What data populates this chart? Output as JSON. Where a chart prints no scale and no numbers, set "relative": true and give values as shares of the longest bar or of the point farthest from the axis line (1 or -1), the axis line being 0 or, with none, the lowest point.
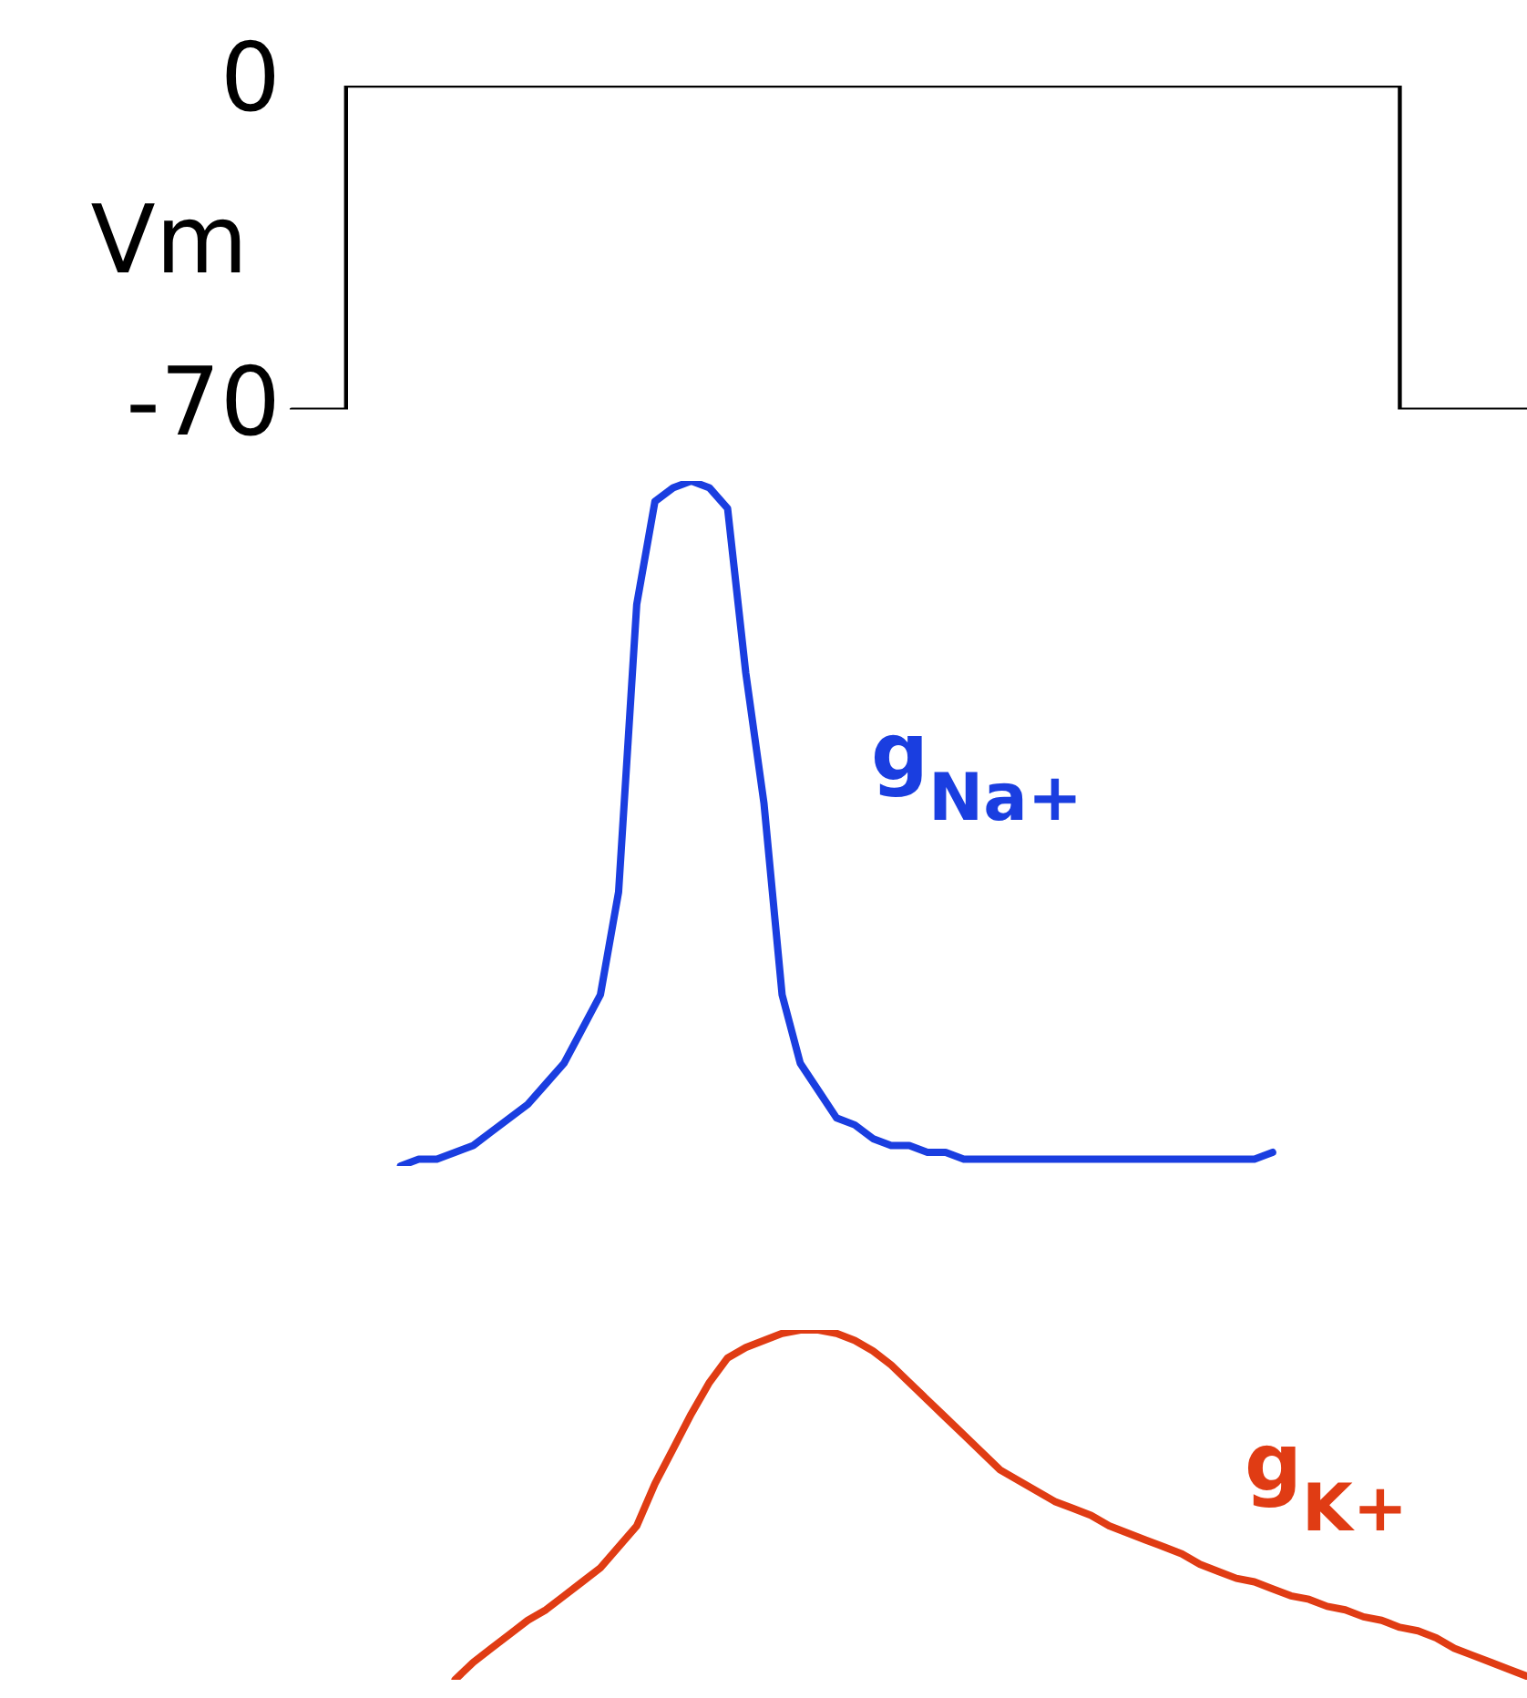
{
  "chart_data": [
    {
      "type": "step",
      "ylabel": "Vm",
      "categories": [
        null,
        null,
        null,
        null,
        null,
        null,
        null,
        null,
        null,
        null,
        null,
        null,
        null,
        null,
        null,
        null,
        null,
        null,
        null,
        null,
        null,
        null,
        null,
        null,
        null,
        null,
        null,
        null,
        null,
        null,
        null,
        null,
        null,
        null,
        null,
        null,
        null,
        null,
        null,
        null,
        null,
        null,
        null,
        null,
        null,
        null,
        null,
        null,
        null,
        null,
        null,
        null,
        null,
        null,
        null,
        null,
        null,
        null,
        null,
        null,
        null,
        null,
        null,
        null,
        null,
        null,
        null,
        null,
        null
      ],
      "values": [
        -70,
        -70,
        -70,
        -70,
        0,
        0,
        0,
        0,
        0,
        0,
        0,
        0,
        0,
        0,
        0,
        0,
        0,
        0,
        0,
        0,
        0,
        0,
        0,
        0,
        0,
        0,
        0,
        0,
        0,
        0,
        0,
        0,
        0,
        0,
        0,
        0,
        0,
        0,
        0,
        0,
        0,
        0,
        0,
        0,
        0,
        0,
        0,
        0,
        0,
        0,
        0,
        0,
        0,
        0,
        0,
        0,
        0,
        0,
        0,
        0,
        0,
        0,
        -70,
        -70,
        -70,
        -70,
        -70,
        -70,
        -70
      ],
      "color": "#000000",
      "ylim": [
        -70,
        0
      ],
      "yticks": [
        -70,
        0
      ],
      "tick_labels": "y"
    },
    {
      "type": "line",
      "relative": true,
      "tick_labels": false,
      "categories": [
        null,
        null,
        null,
        null,
        null,
        null,
        null,
        null,
        null,
        null,
        null,
        null,
        null,
        null,
        null,
        null,
        null,
        null,
        null,
        null,
        null,
        null,
        null,
        null,
        null,
        null,
        null,
        null,
        null,
        null,
        null,
        null,
        null,
        null,
        null,
        null,
        null,
        null,
        null,
        null,
        null,
        null,
        null,
        null,
        null,
        null,
        null,
        null,
        null,
        null,
        null,
        null,
        null,
        null,
        null,
        null,
        null,
        null,
        null,
        null,
        null,
        null,
        null,
        null,
        null,
        null,
        null,
        null,
        null
      ],
      "series": [
        {
          "name": "g$_{Na+}$",
          "color": "#1a3ee0",
          "values": [
            null,
            null,
            null,
            null,
            null,
            null,
            0,
            0.01,
            0.01,
            0.02,
            0.03,
            0.05,
            0.07,
            0.09,
            0.12,
            0.15,
            0.2,
            0.25,
            0.4,
            0.82,
            0.97,
            0.99,
            1,
            0.99,
            0.96,
            0.72,
            0.53,
            0.25,
            0.15,
            0.11,
            0.07,
            0.06,
            0.04,
            0.03,
            0.03,
            0.02,
            0.02,
            0.01,
            0.01,
            0.01,
            0.01,
            0.01,
            0.01,
            0.01,
            0.01,
            0.01,
            0.01,
            0.01,
            0.01,
            0.01,
            0.01,
            0.01,
            0.01,
            0.01,
            0.02,
            null,
            null,
            null,
            null,
            null,
            null,
            null,
            null,
            null,
            null,
            null,
            null,
            null,
            null
          ]
        }
      ]
    },
    {
      "type": "line",
      "relative": true,
      "tick_labels": false,
      "categories": [
        null,
        null,
        null,
        null,
        null,
        null,
        null,
        null,
        null,
        null,
        null,
        null,
        null,
        null,
        null,
        null,
        null,
        null,
        null,
        null,
        null,
        null,
        null,
        null,
        null,
        null,
        null,
        null,
        null,
        null,
        null,
        null,
        null,
        null,
        null,
        null,
        null,
        null,
        null,
        null,
        null,
        null,
        null,
        null,
        null,
        null,
        null,
        null,
        null,
        null,
        null,
        null,
        null,
        null,
        null,
        null,
        null,
        null,
        null,
        null,
        null,
        null,
        null,
        null,
        null,
        null,
        null,
        null,
        null
      ],
      "series": [
        {
          "name": "g$_{K+}$",
          "color": "#e03c14",
          "values": [
            null,
            null,
            null,
            null,
            null,
            null,
            null,
            null,
            null,
            0,
            0.05,
            0.09,
            0.13,
            0.17,
            0.2,
            0.24,
            0.28,
            0.32,
            0.38,
            0.44,
            0.56,
            0.66,
            0.76,
            0.85,
            0.92,
            0.95,
            0.97,
            0.99,
            1,
            1,
            0.99,
            0.97,
            0.94,
            0.9,
            0.85,
            0.8,
            0.75,
            0.7,
            0.65,
            0.6,
            0.57,
            0.54,
            0.51,
            0.49,
            0.47,
            0.44,
            0.42,
            0.4,
            0.38,
            0.36,
            0.33,
            0.31,
            0.29,
            0.28,
            0.26,
            0.24,
            0.23,
            0.21,
            0.2,
            0.18,
            0.17,
            0.15,
            0.14,
            0.12,
            0.09,
            0.07,
            0.05,
            0.03,
            0.01
          ]
        }
      ]
    }
  ]
}
